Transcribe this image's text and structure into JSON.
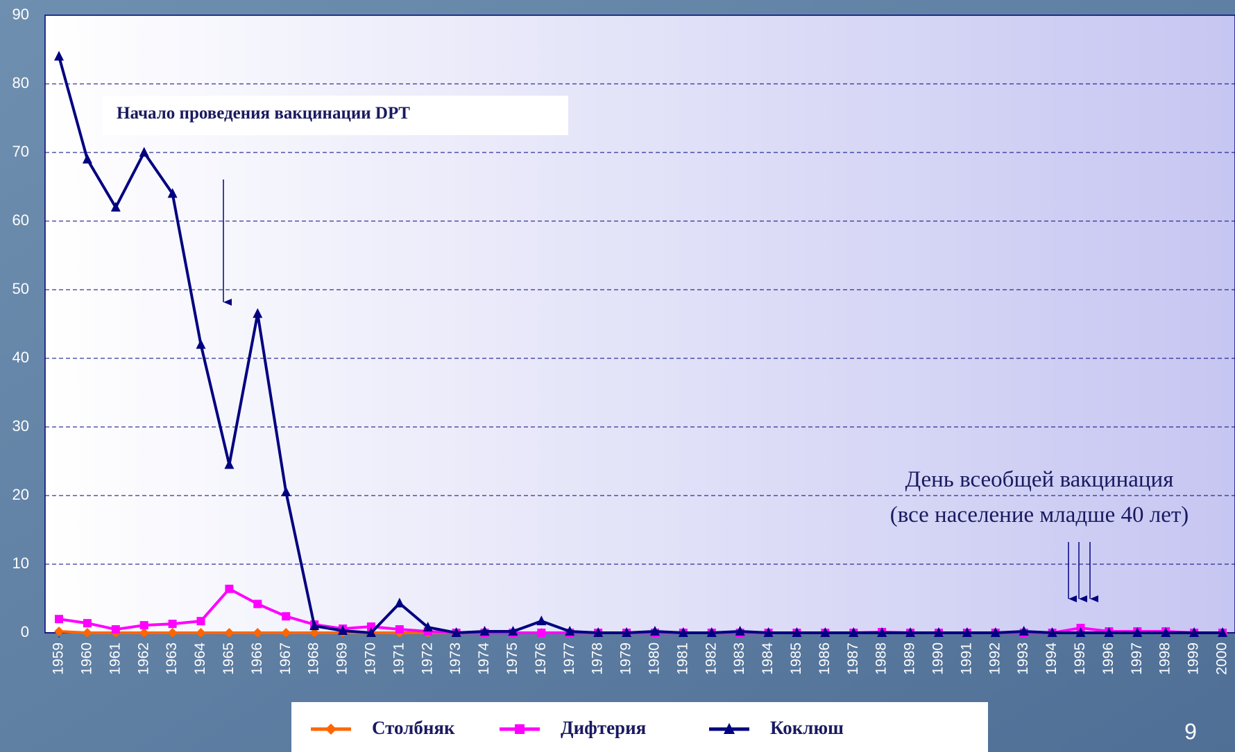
{
  "chart_data": {
    "type": "line",
    "categories": [
      "1959",
      "1960",
      "1961",
      "1962",
      "1963",
      "1964",
      "1965",
      "1966",
      "1967",
      "1968",
      "1969",
      "1970",
      "1971",
      "1972",
      "1973",
      "1974",
      "1975",
      "1976",
      "1977",
      "1978",
      "1979",
      "1980",
      "1981",
      "1982",
      "1983",
      "1984",
      "1985",
      "1986",
      "1987",
      "1988",
      "1989",
      "1990",
      "1991",
      "1992",
      "1993",
      "1994",
      "1995",
      "1996",
      "1997",
      "1998",
      "1999",
      "2000"
    ],
    "series": [
      {
        "name": "Столбняк",
        "color": "#ff6600",
        "marker": "diamond",
        "values": [
          0.2,
          0,
          0,
          0,
          0,
          0,
          0,
          0,
          0,
          0,
          0,
          0,
          0,
          0,
          0,
          0,
          0,
          0,
          0,
          0,
          0,
          0,
          0,
          0,
          0,
          0,
          0,
          0,
          0,
          0,
          0,
          0,
          0,
          0,
          0,
          0,
          0,
          0,
          0,
          0,
          0,
          0
        ]
      },
      {
        "name": "Дифтерия",
        "color": "#ff00ff",
        "marker": "square",
        "values": [
          2,
          1.4,
          0.5,
          1.1,
          1.3,
          1.7,
          6.4,
          4.2,
          2.4,
          1.2,
          0.6,
          0.9,
          0.5,
          0.2,
          0,
          0,
          0,
          0,
          0,
          0,
          0,
          0,
          0,
          0,
          0,
          0,
          0,
          0,
          0,
          0.1,
          0,
          0,
          0,
          0,
          0,
          0,
          0.7,
          0.2,
          0.2,
          0.2,
          0,
          0
        ]
      },
      {
        "name": "Коклюш",
        "color": "#000080",
        "marker": "triangle",
        "values": [
          84,
          69,
          62,
          70,
          64,
          42,
          24.5,
          46.5,
          20.5,
          1,
          0.3,
          0,
          4.3,
          0.8,
          0,
          0.2,
          0.2,
          1.7,
          0.2,
          0,
          0,
          0.2,
          0,
          0,
          0.2,
          0,
          0,
          0,
          0,
          0,
          0,
          0,
          0,
          0,
          0.2,
          0,
          0,
          0,
          0,
          0,
          0,
          0
        ]
      }
    ],
    "ylim": [
      0,
      90
    ],
    "yticks": [
      0,
      10,
      20,
      30,
      40,
      50,
      60,
      70,
      80,
      90
    ],
    "grid": true,
    "annotations": [
      "Начало проведения вакцинации DPT",
      "День всеобщей вакцинация",
      "(все население младше 40 лет)"
    ],
    "page_number": "9"
  }
}
